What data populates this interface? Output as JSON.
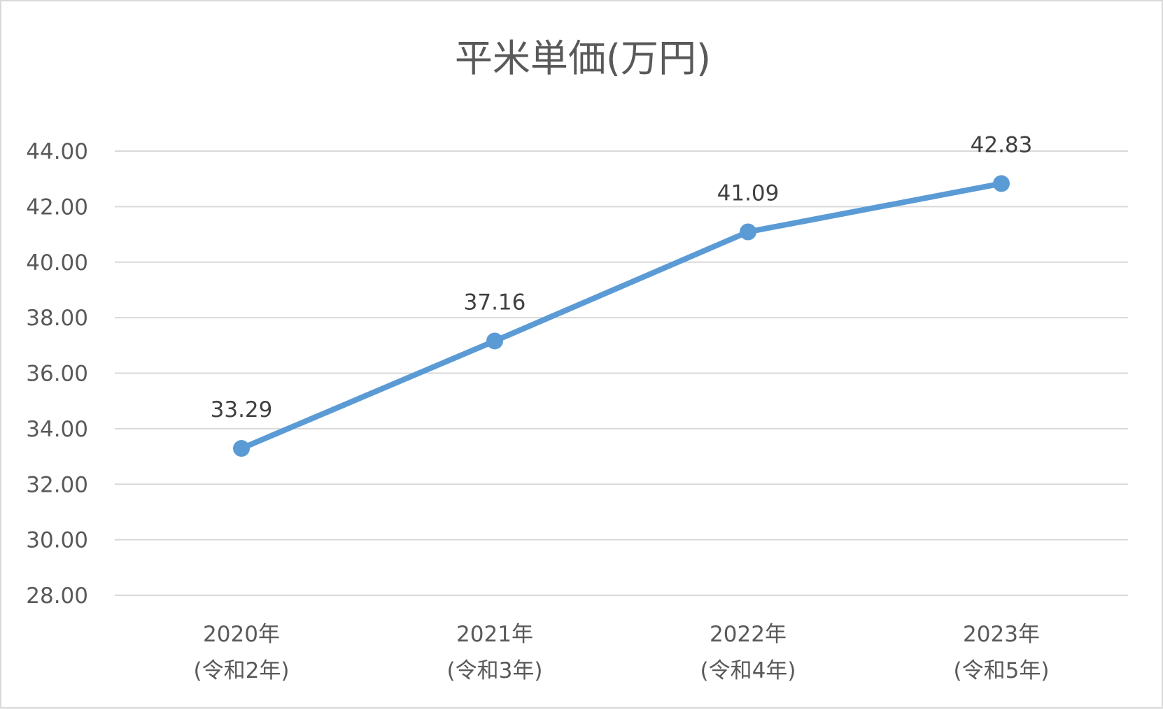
{
  "chart_data": {
    "type": "line",
    "title": "平米単価(万円)",
    "categories": [
      [
        "2020年",
        "(令和2年)"
      ],
      [
        "2021年",
        "(令和3年)"
      ],
      [
        "2022年",
        "(令和4年)"
      ],
      [
        "2023年",
        "(令和5年)"
      ]
    ],
    "series": [
      {
        "values": [
          33.29,
          37.16,
          41.09,
          42.83
        ],
        "data_labels": [
          "33.29",
          "37.16",
          "41.09",
          "42.83"
        ],
        "color": "#5b9bd5"
      }
    ],
    "ylim": [
      28,
      44
    ],
    "yticks": [
      "28.00",
      "30.00",
      "32.00",
      "34.00",
      "36.00",
      "38.00",
      "40.00",
      "42.00",
      "44.00"
    ],
    "grid": true,
    "legend": "none",
    "colors": {
      "line": "#5b9bd5",
      "grid": "#d9d9d9",
      "border": "#d9d9d9",
      "text": "#595959"
    }
  }
}
